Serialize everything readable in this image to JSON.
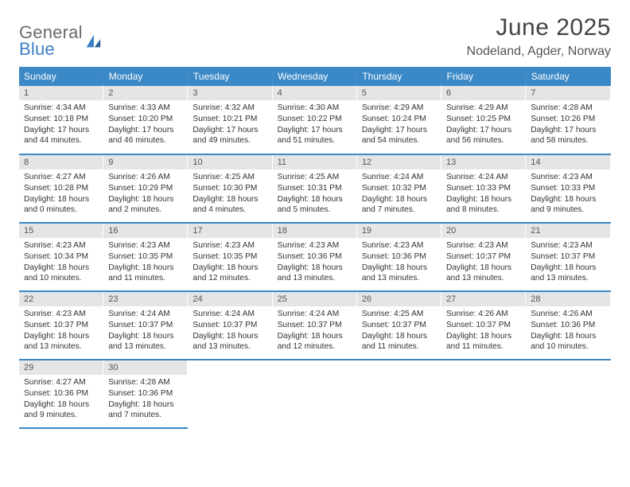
{
  "brand": {
    "word1": "General",
    "word2": "Blue"
  },
  "title": "June 2025",
  "location": "Nodeland, Agder, Norway",
  "colors": {
    "header_bg": "#3a88c6",
    "daynum_bg": "#e5e5e5",
    "rule": "#3a88c6"
  },
  "weekdays": [
    "Sunday",
    "Monday",
    "Tuesday",
    "Wednesday",
    "Thursday",
    "Friday",
    "Saturday"
  ],
  "weeks": [
    [
      {
        "n": "1",
        "sr": "4:34 AM",
        "ss": "10:18 PM",
        "dl": "17 hours and 44 minutes."
      },
      {
        "n": "2",
        "sr": "4:33 AM",
        "ss": "10:20 PM",
        "dl": "17 hours and 46 minutes."
      },
      {
        "n": "3",
        "sr": "4:32 AM",
        "ss": "10:21 PM",
        "dl": "17 hours and 49 minutes."
      },
      {
        "n": "4",
        "sr": "4:30 AM",
        "ss": "10:22 PM",
        "dl": "17 hours and 51 minutes."
      },
      {
        "n": "5",
        "sr": "4:29 AM",
        "ss": "10:24 PM",
        "dl": "17 hours and 54 minutes."
      },
      {
        "n": "6",
        "sr": "4:29 AM",
        "ss": "10:25 PM",
        "dl": "17 hours and 56 minutes."
      },
      {
        "n": "7",
        "sr": "4:28 AM",
        "ss": "10:26 PM",
        "dl": "17 hours and 58 minutes."
      }
    ],
    [
      {
        "n": "8",
        "sr": "4:27 AM",
        "ss": "10:28 PM",
        "dl": "18 hours and 0 minutes."
      },
      {
        "n": "9",
        "sr": "4:26 AM",
        "ss": "10:29 PM",
        "dl": "18 hours and 2 minutes."
      },
      {
        "n": "10",
        "sr": "4:25 AM",
        "ss": "10:30 PM",
        "dl": "18 hours and 4 minutes."
      },
      {
        "n": "11",
        "sr": "4:25 AM",
        "ss": "10:31 PM",
        "dl": "18 hours and 5 minutes."
      },
      {
        "n": "12",
        "sr": "4:24 AM",
        "ss": "10:32 PM",
        "dl": "18 hours and 7 minutes."
      },
      {
        "n": "13",
        "sr": "4:24 AM",
        "ss": "10:33 PM",
        "dl": "18 hours and 8 minutes."
      },
      {
        "n": "14",
        "sr": "4:23 AM",
        "ss": "10:33 PM",
        "dl": "18 hours and 9 minutes."
      }
    ],
    [
      {
        "n": "15",
        "sr": "4:23 AM",
        "ss": "10:34 PM",
        "dl": "18 hours and 10 minutes."
      },
      {
        "n": "16",
        "sr": "4:23 AM",
        "ss": "10:35 PM",
        "dl": "18 hours and 11 minutes."
      },
      {
        "n": "17",
        "sr": "4:23 AM",
        "ss": "10:35 PM",
        "dl": "18 hours and 12 minutes."
      },
      {
        "n": "18",
        "sr": "4:23 AM",
        "ss": "10:36 PM",
        "dl": "18 hours and 13 minutes."
      },
      {
        "n": "19",
        "sr": "4:23 AM",
        "ss": "10:36 PM",
        "dl": "18 hours and 13 minutes."
      },
      {
        "n": "20",
        "sr": "4:23 AM",
        "ss": "10:37 PM",
        "dl": "18 hours and 13 minutes."
      },
      {
        "n": "21",
        "sr": "4:23 AM",
        "ss": "10:37 PM",
        "dl": "18 hours and 13 minutes."
      }
    ],
    [
      {
        "n": "22",
        "sr": "4:23 AM",
        "ss": "10:37 PM",
        "dl": "18 hours and 13 minutes."
      },
      {
        "n": "23",
        "sr": "4:24 AM",
        "ss": "10:37 PM",
        "dl": "18 hours and 13 minutes."
      },
      {
        "n": "24",
        "sr": "4:24 AM",
        "ss": "10:37 PM",
        "dl": "18 hours and 13 minutes."
      },
      {
        "n": "25",
        "sr": "4:24 AM",
        "ss": "10:37 PM",
        "dl": "18 hours and 12 minutes."
      },
      {
        "n": "26",
        "sr": "4:25 AM",
        "ss": "10:37 PM",
        "dl": "18 hours and 11 minutes."
      },
      {
        "n": "27",
        "sr": "4:26 AM",
        "ss": "10:37 PM",
        "dl": "18 hours and 11 minutes."
      },
      {
        "n": "28",
        "sr": "4:26 AM",
        "ss": "10:36 PM",
        "dl": "18 hours and 10 minutes."
      }
    ],
    [
      {
        "n": "29",
        "sr": "4:27 AM",
        "ss": "10:36 PM",
        "dl": "18 hours and 9 minutes."
      },
      {
        "n": "30",
        "sr": "4:28 AM",
        "ss": "10:36 PM",
        "dl": "18 hours and 7 minutes."
      },
      null,
      null,
      null,
      null,
      null
    ]
  ],
  "labels": {
    "sunrise": "Sunrise:",
    "sunset": "Sunset:",
    "daylight": "Daylight:"
  }
}
